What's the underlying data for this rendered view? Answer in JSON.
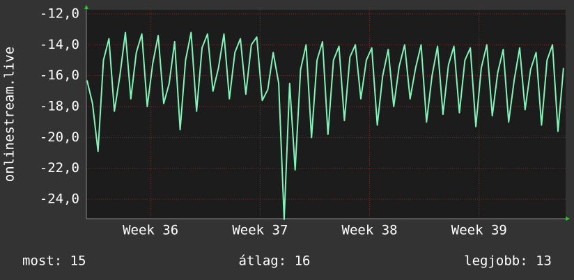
{
  "chart_data": {
    "type": "line",
    "ylabel": "onlinestream.live",
    "x": [
      35.42,
      35.47,
      35.52,
      35.57,
      35.62,
      35.67,
      35.72,
      35.77,
      35.82,
      35.87,
      35.92,
      35.97,
      36.02,
      36.07,
      36.12,
      36.17,
      36.22,
      36.27,
      36.32,
      36.37,
      36.42,
      36.47,
      36.52,
      36.57,
      36.62,
      36.67,
      36.72,
      36.77,
      36.82,
      36.87,
      36.92,
      36.97,
      37.02,
      37.07,
      37.12,
      37.17,
      37.22,
      37.27,
      37.32,
      37.37,
      37.42,
      37.47,
      37.52,
      37.57,
      37.62,
      37.67,
      37.72,
      37.77,
      37.82,
      37.87,
      37.92,
      37.97,
      38.02,
      38.07,
      38.12,
      38.17,
      38.22,
      38.27,
      38.32,
      38.37,
      38.42,
      38.47,
      38.52,
      38.57,
      38.62,
      38.67,
      38.72,
      38.77,
      38.82,
      38.87,
      38.92,
      38.97,
      39.02,
      39.07,
      39.12,
      39.17,
      39.22,
      39.27,
      39.32,
      39.37,
      39.42,
      39.47,
      39.52,
      39.57,
      39.62,
      39.67,
      39.72,
      39.77
    ],
    "series": [
      {
        "name": "onlinestream.live",
        "color": "#80f5b8",
        "values": [
          -16.3,
          -17.8,
          -20.9,
          -15.0,
          -13.6,
          -18.3,
          -16.0,
          -13.2,
          -17.5,
          -14.5,
          -13.3,
          -18.0,
          -15.2,
          -13.4,
          -17.8,
          -16.5,
          -13.8,
          -19.5,
          -15.0,
          -13.2,
          -18.3,
          -14.2,
          -13.3,
          -17.0,
          -15.5,
          -13.3,
          -17.5,
          -14.5,
          -13.6,
          -17.2,
          -14.0,
          -13.5,
          -17.6,
          -16.9,
          -14.5,
          -16.5,
          -25.3,
          -16.5,
          -22.1,
          -15.6,
          -14.0,
          -20.0,
          -15.0,
          -13.8,
          -19.8,
          -15.0,
          -14.1,
          -18.9,
          -14.8,
          -14.0,
          -17.5,
          -15.0,
          -14.2,
          -19.2,
          -16.0,
          -14.3,
          -18.0,
          -15.4,
          -14.0,
          -17.5,
          -15.5,
          -14.0,
          -19.0,
          -16.0,
          -14.1,
          -18.5,
          -15.3,
          -14.1,
          -18.4,
          -15.0,
          -14.2,
          -19.3,
          -15.5,
          -14.0,
          -18.6,
          -15.8,
          -14.3,
          -19.0,
          -16.3,
          -14.2,
          -18.2,
          -15.6,
          -14.5,
          -19.2,
          -15.0,
          -14.0,
          -19.6,
          -15.5
        ]
      }
    ],
    "xlim": [
      35.414,
      39.79
    ],
    "xticks": [
      {
        "value": 36,
        "label": "Week 36"
      },
      {
        "value": 37,
        "label": "Week 37"
      },
      {
        "value": 38,
        "label": "Week 38"
      },
      {
        "value": 39,
        "label": "Week 39"
      }
    ],
    "ylim": [
      -25.26,
      -11.73
    ],
    "yticks": [
      {
        "value": -12,
        "label": "-12,0"
      },
      {
        "value": -14,
        "label": "-14,0"
      },
      {
        "value": -16,
        "label": "-16,0"
      },
      {
        "value": -18,
        "label": "-18,0"
      },
      {
        "value": -20,
        "label": "-20,0"
      },
      {
        "value": -22,
        "label": "-22,0"
      },
      {
        "value": -24,
        "label": "-24,0"
      }
    ],
    "grid": true,
    "footer": [
      "most: 15",
      "átlag: 16",
      "legjobb: 13"
    ]
  }
}
